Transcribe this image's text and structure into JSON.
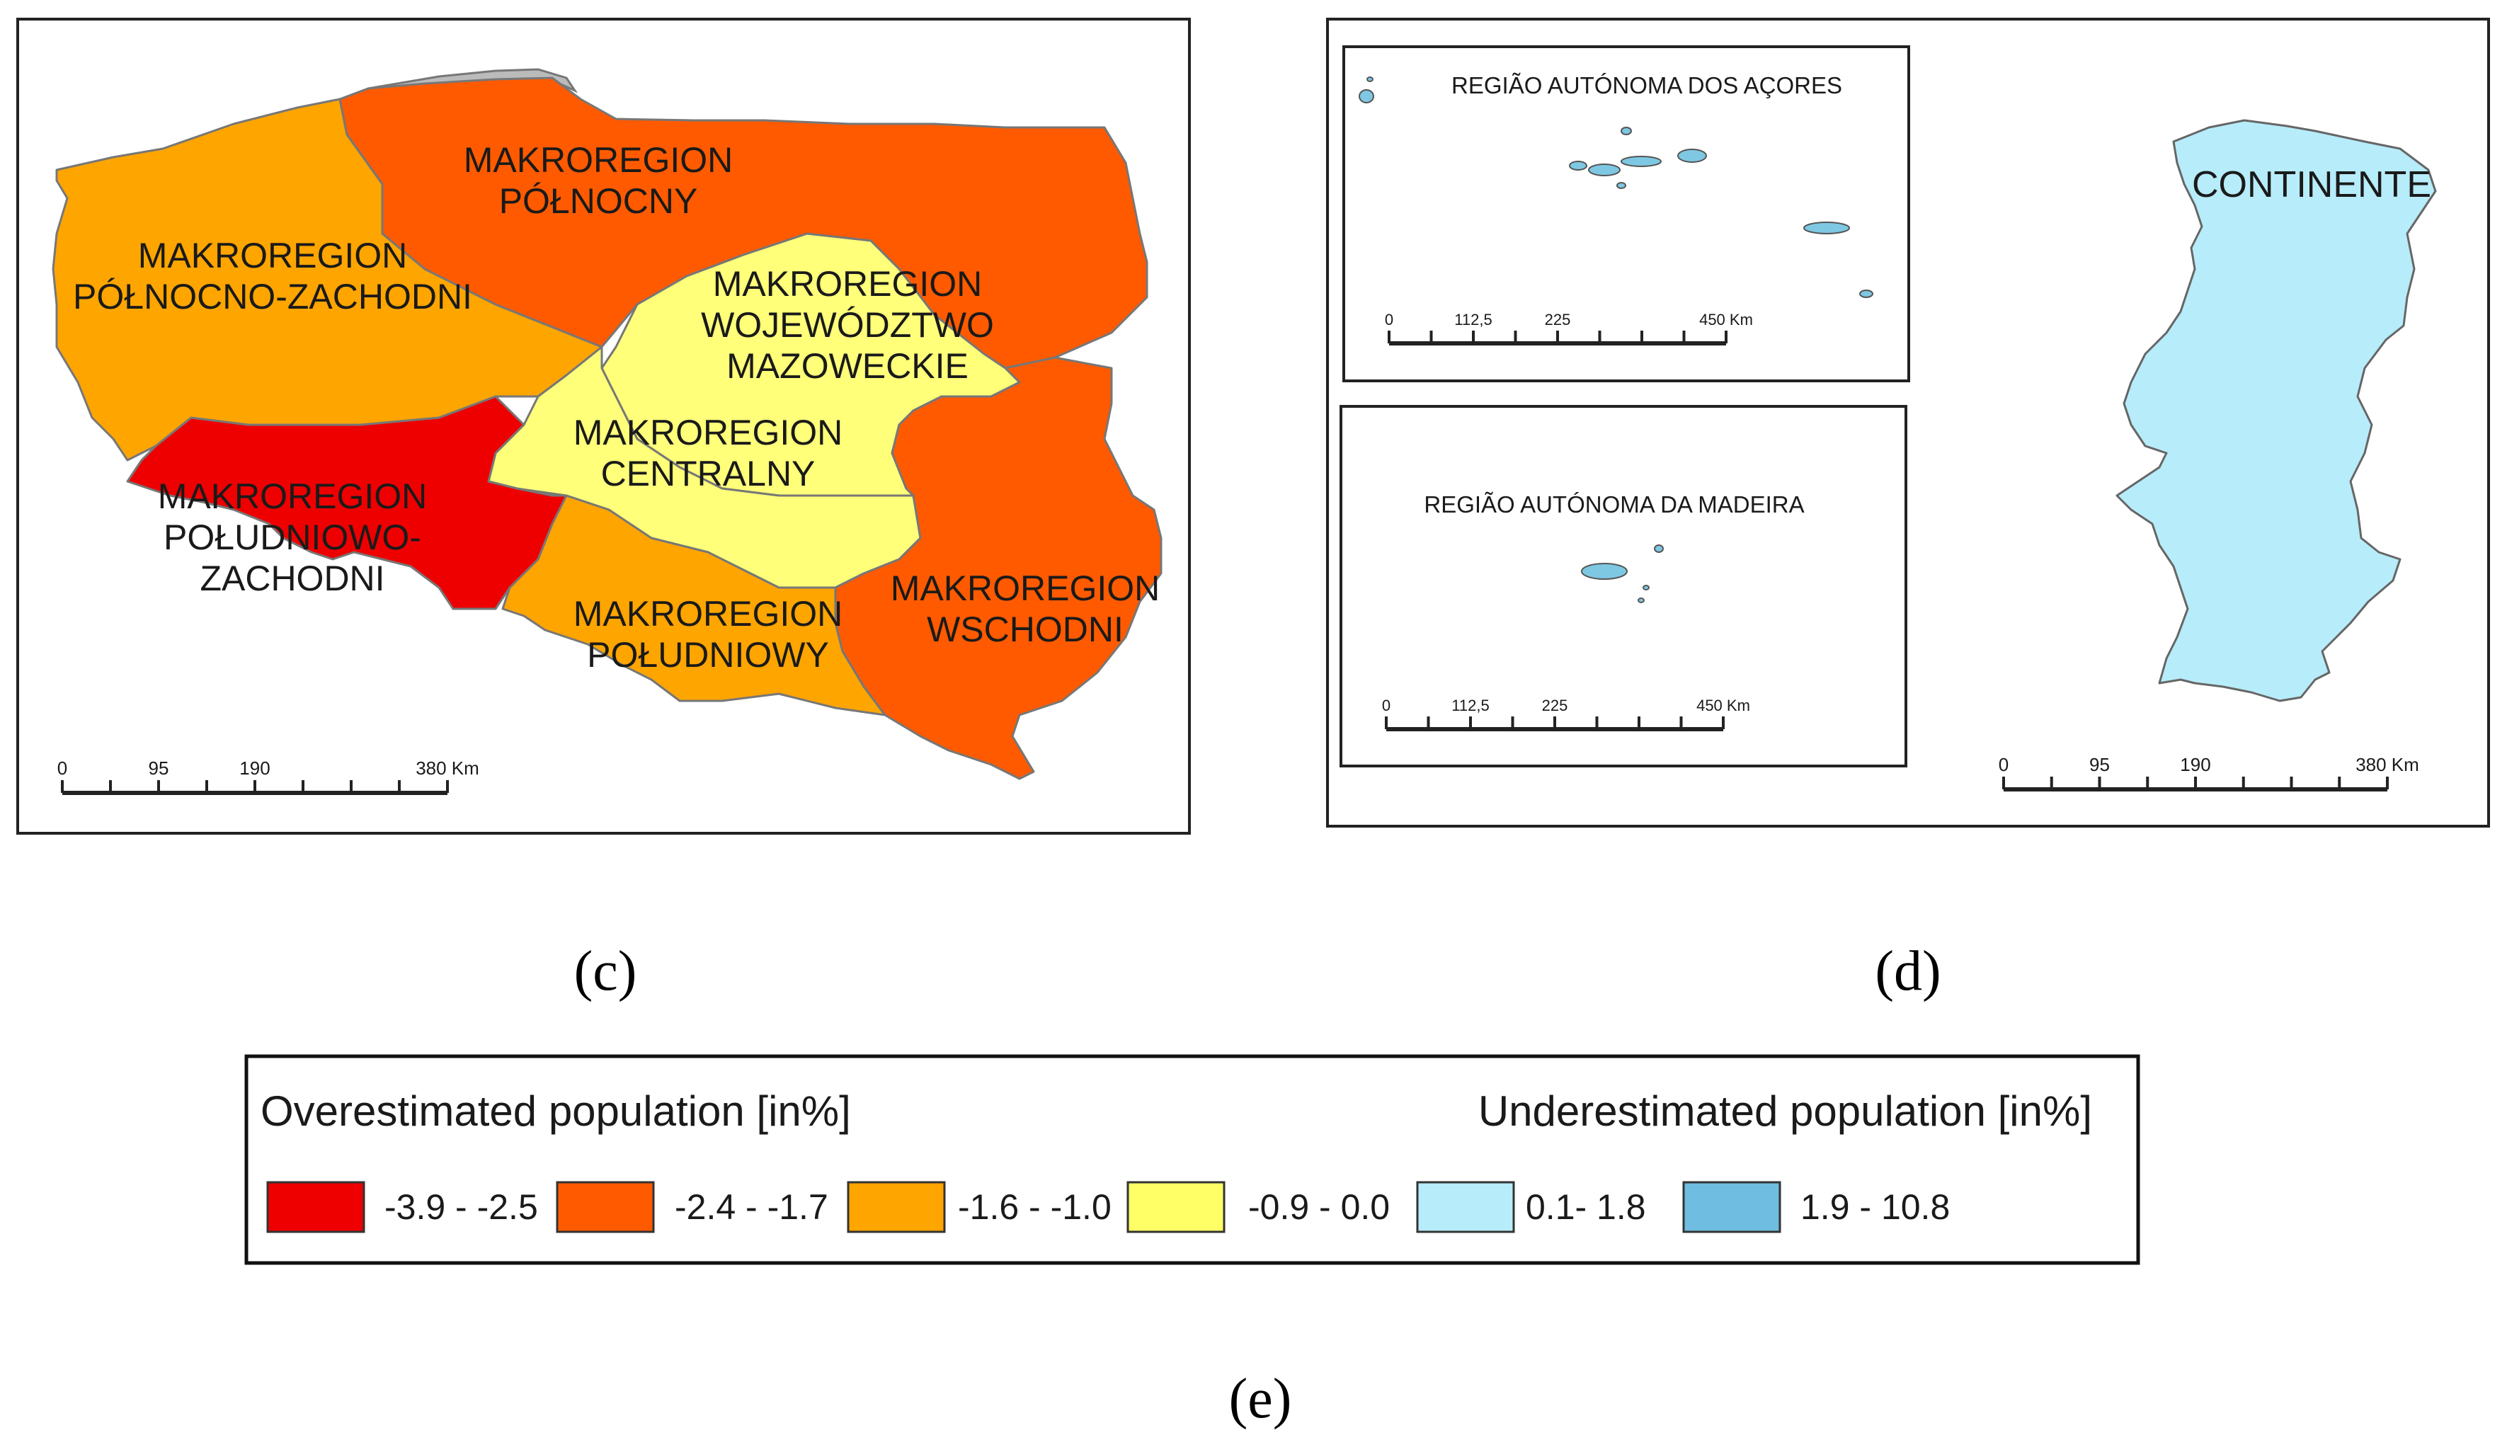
{
  "maps": {
    "poland": {
      "caption": "(c)",
      "regions": [
        {
          "id": "pn-zach",
          "lines": [
            "MAKROREGION",
            "PÓŁNOCNO-ZACHODNI"
          ],
          "color": "#ffa500"
        },
        {
          "id": "pn",
          "lines": [
            "MAKROREGION",
            "PÓŁNOCNY"
          ],
          "color": "#ff5a00"
        },
        {
          "id": "maz",
          "lines": [
            "MAKROREGION",
            "WOJEWÓDZTWO",
            "MAZOWECKIE"
          ],
          "color": "#ffff7a"
        },
        {
          "id": "centr",
          "lines": [
            "MAKROREGION",
            "CENTRALNY"
          ],
          "color": "#ffff7a"
        },
        {
          "id": "pd-zach",
          "lines": [
            "MAKROREGION",
            "POŁUDNIOWO-",
            "ZACHODNI"
          ],
          "color": "#ee0000"
        },
        {
          "id": "pd",
          "lines": [
            "MAKROREGION",
            "POŁUDNIOWY"
          ],
          "color": "#ffa500"
        },
        {
          "id": "wsch",
          "lines": [
            "MAKROREGION",
            "WSCHODNI"
          ],
          "color": "#ff5a00"
        }
      ],
      "scalebar": {
        "ticks": [
          "0",
          "95",
          "190",
          "380 Km"
        ]
      }
    },
    "portugal": {
      "caption": "(d)",
      "azores": {
        "title": "REGIÃO AUTÓNOMA DOS AÇORES",
        "scalebar": {
          "ticks": [
            "0",
            "112,5",
            "225",
            "450 Km"
          ]
        }
      },
      "madeira": {
        "title": "REGIÃO AUTÓNOMA DA MADEIRA",
        "scalebar": {
          "ticks": [
            "0",
            "112,5",
            "225",
            "450 Km"
          ]
        }
      },
      "continente": {
        "label": "CONTINENTE",
        "color": "#b7ecfa"
      },
      "island_color": "#7ec8e3",
      "scalebar": {
        "ticks": [
          "0",
          "95",
          "190",
          "380 Km"
        ]
      }
    }
  },
  "legend": {
    "caption": "(e)",
    "over_title": "Overestimated population [in%]",
    "under_title": "Underestimated population [in%]",
    "classes": [
      {
        "label": "-3.9 - -2.5",
        "color": "#ee0000"
      },
      {
        "label": "-2.4 - -1.7",
        "color": "#ff5a00"
      },
      {
        "label": "-1.6 - -1.0",
        "color": "#ffa500"
      },
      {
        "label": "-0.9 - 0.0",
        "color": "#ffff66"
      },
      {
        "label": "0.1- 1.8",
        "color": "#b7ecfa"
      },
      {
        "label": "1.9 - 10.8",
        "color": "#6fbde0"
      }
    ]
  }
}
